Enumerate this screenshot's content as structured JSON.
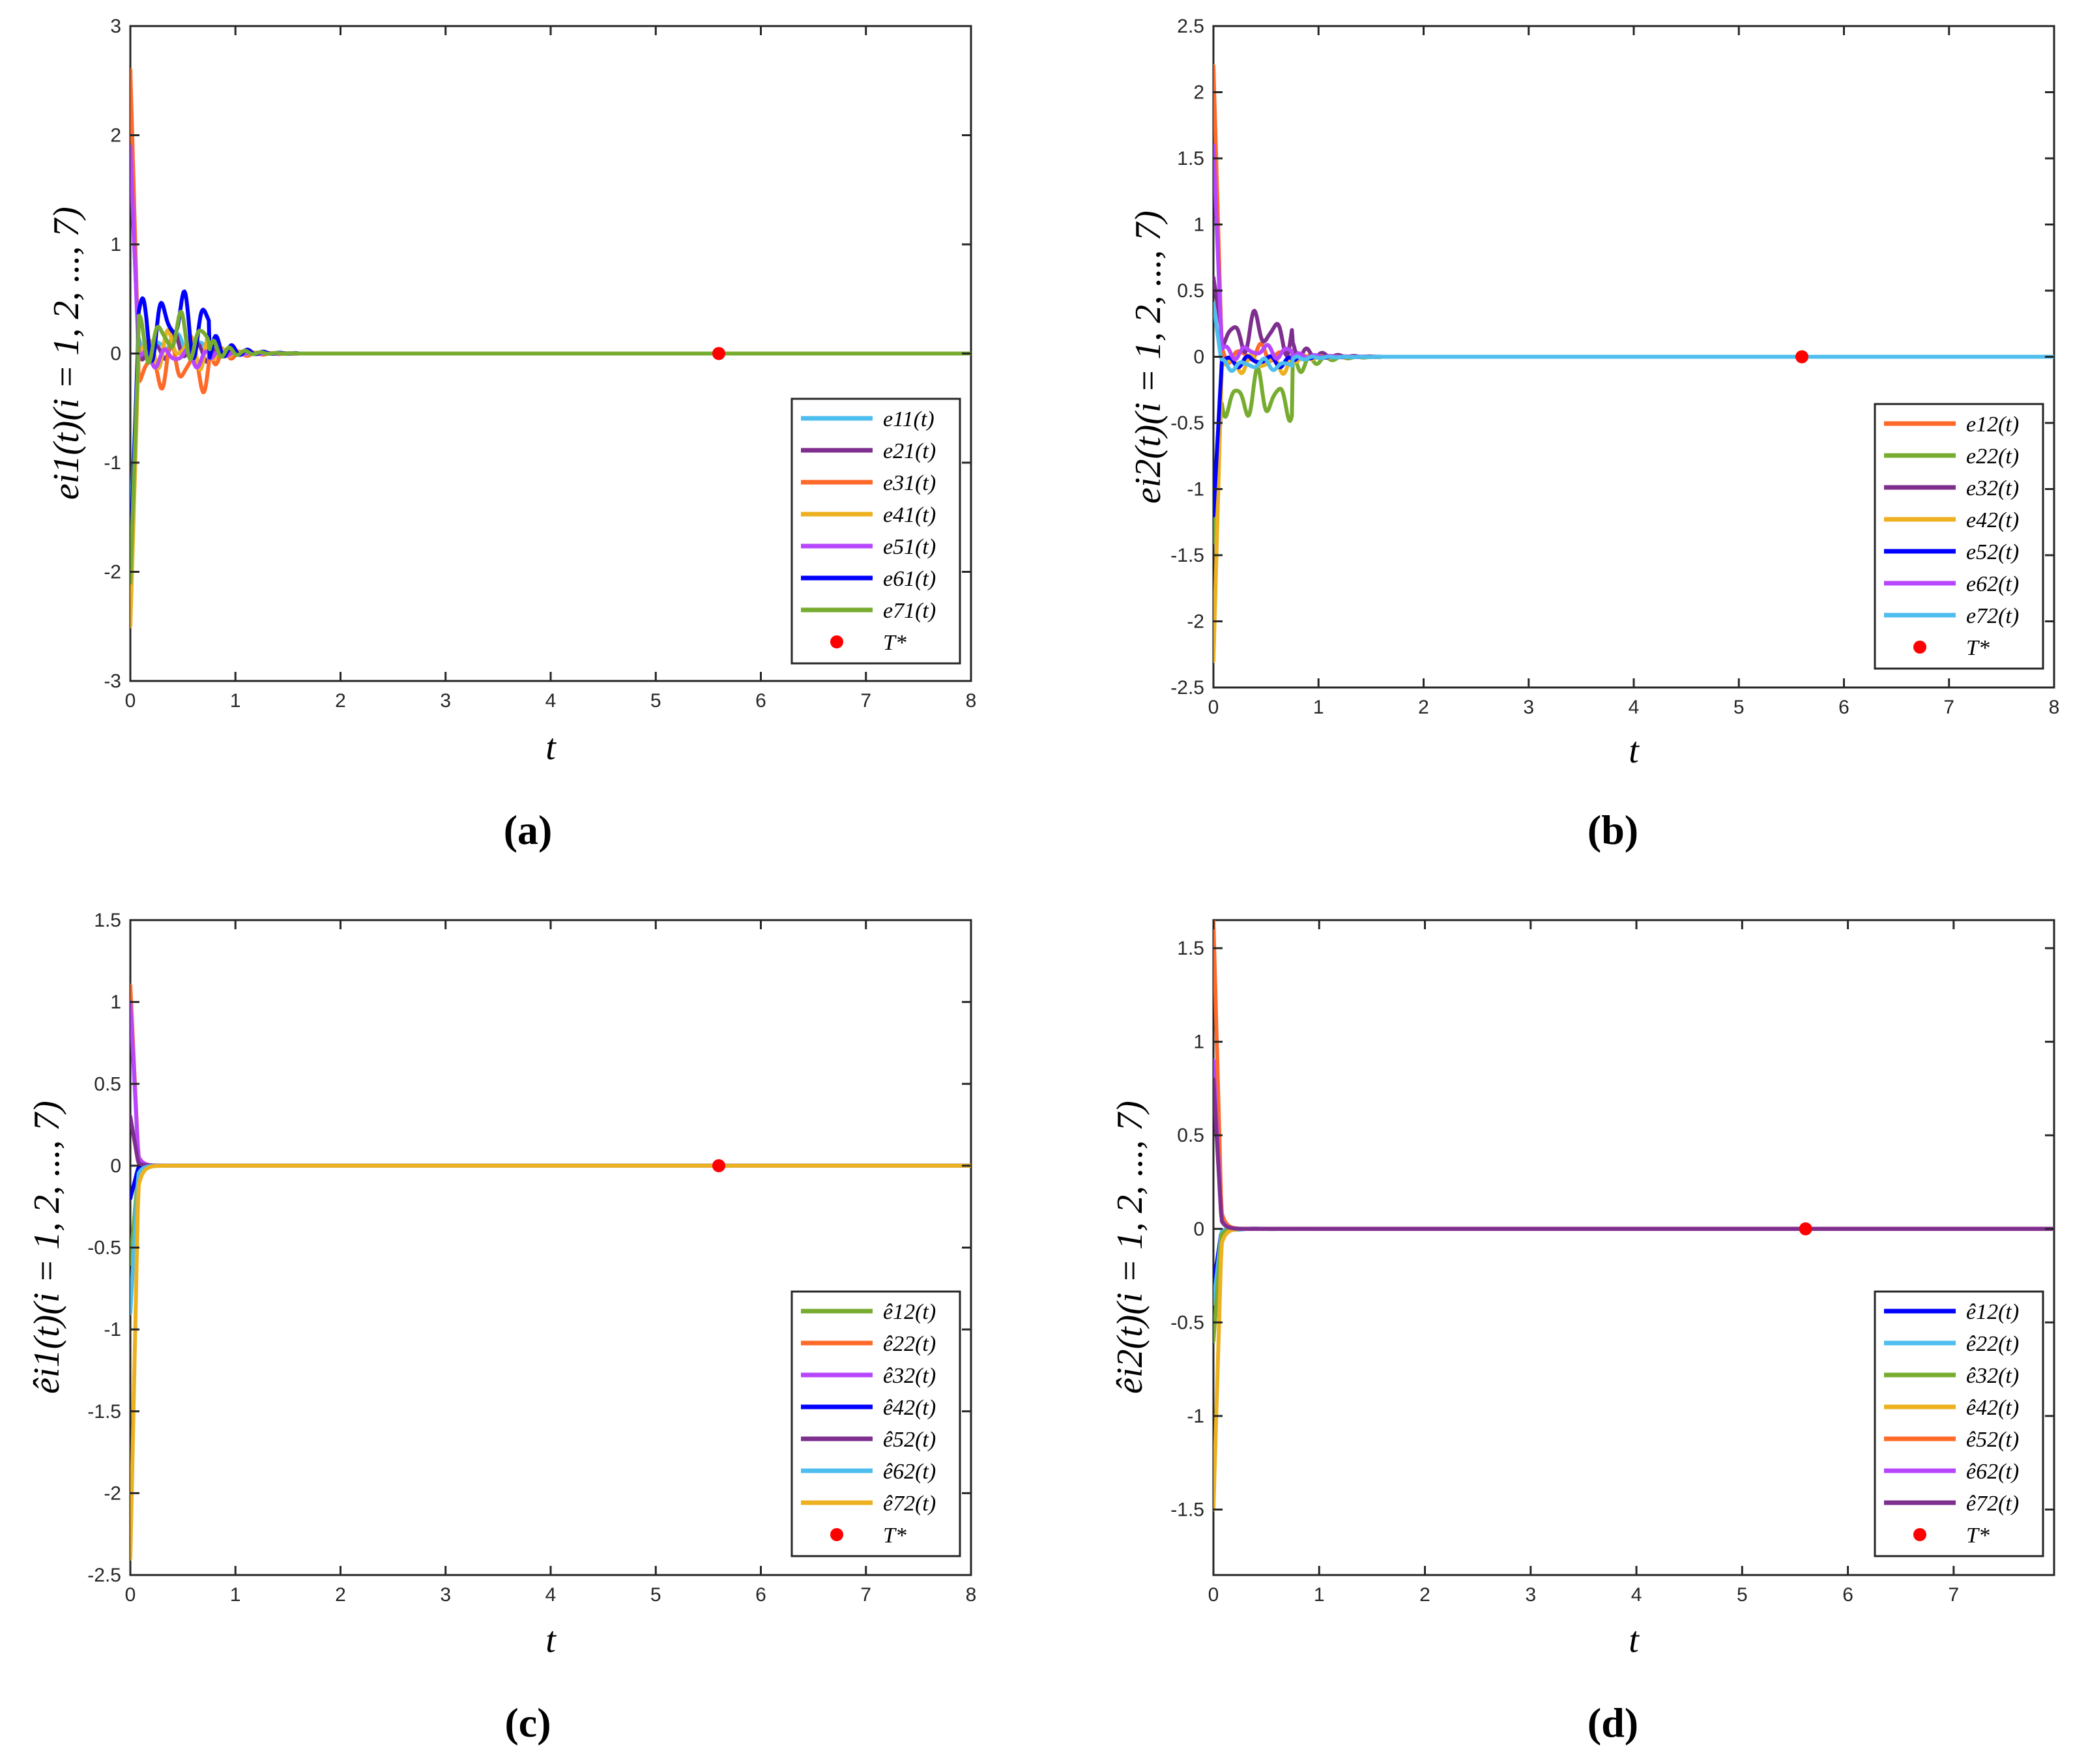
{
  "chart_data": [
    {
      "id": "a",
      "type": "line",
      "caption": "(a)",
      "ylabel": "e_{i1}(t)(i = 1, 2, ..., 7)",
      "ylabel_display": "ei1(t)(i = 1, 2, ..., 7)",
      "xlabel": "t",
      "xlim": [
        0,
        8
      ],
      "ylim": [
        -3,
        3
      ],
      "xticks": [
        "0",
        "1",
        "2",
        "3",
        "4",
        "5",
        "6",
        "7",
        "8"
      ],
      "yticks": [
        "-3",
        "-2",
        "-1",
        "0",
        "1",
        "2",
        "3"
      ],
      "marker": {
        "label": "T*",
        "x": 5.6,
        "y": 0,
        "color": "#ff0000"
      },
      "series": [
        {
          "name": "e11(t)",
          "color": "#4dbeee",
          "init": -1.6,
          "osc": 0.1,
          "bias": 0.08
        },
        {
          "name": "e21(t)",
          "color": "#7e2f8e",
          "init": 1.8,
          "osc": 0.15,
          "bias": 0.05
        },
        {
          "name": "e31(t)",
          "color": "#ff6929",
          "init": 2.6,
          "osc": 0.25,
          "bias": -0.12
        },
        {
          "name": "e41(t)",
          "color": "#edb120",
          "init": -2.5,
          "osc": 0.2,
          "bias": 0.05
        },
        {
          "name": "e51(t)",
          "color": "#b746ff",
          "init": 1.9,
          "osc": 0.1,
          "bias": -0.03
        },
        {
          "name": "e61(t)",
          "color": "#0000ff",
          "init": -1.9,
          "osc": 0.35,
          "bias": 0.28
        },
        {
          "name": "e71(t)",
          "color": "#77ac30",
          "init": -2.1,
          "osc": 0.25,
          "bias": 0.15
        }
      ]
    },
    {
      "id": "b",
      "type": "line",
      "caption": "(b)",
      "ylabel": "e_{i2}(t)(i = 1, 2, ..., 7)",
      "ylabel_display": "ei2(t)(i = 1, 2, ..., 7)",
      "xlabel": "t",
      "xlim": [
        0,
        8
      ],
      "ylim": [
        -2.5,
        2.5
      ],
      "xticks": [
        "0",
        "1",
        "2",
        "3",
        "4",
        "5",
        "6",
        "7",
        "8"
      ],
      "yticks": [
        "-2.5",
        "-2",
        "-1.5",
        "-1",
        "-0.5",
        "0",
        "0.5",
        "1",
        "1.5",
        "2",
        "2.5"
      ],
      "marker": {
        "label": "T*",
        "x": 5.6,
        "y": 0,
        "color": "#ff0000"
      },
      "series": [
        {
          "name": "e12(t)",
          "color": "#ff6929",
          "init": 2.2,
          "osc": 0.08,
          "bias": 0.02
        },
        {
          "name": "e22(t)",
          "color": "#77ac30",
          "init": -1.4,
          "osc": 0.22,
          "bias": -0.3
        },
        {
          "name": "e32(t)",
          "color": "#7e2f8e",
          "init": 0.6,
          "osc": 0.18,
          "bias": 0.18
        },
        {
          "name": "e42(t)",
          "color": "#edb120",
          "init": -2.3,
          "osc": 0.08,
          "bias": -0.05
        },
        {
          "name": "e52(t)",
          "color": "#0000ff",
          "init": -1.2,
          "osc": 0.05,
          "bias": -0.03
        },
        {
          "name": "e62(t)",
          "color": "#b746ff",
          "init": 1.6,
          "osc": 0.06,
          "bias": 0.04
        },
        {
          "name": "e72(t)",
          "color": "#4dbeee",
          "init": 0.4,
          "osc": 0.05,
          "bias": -0.06
        }
      ]
    },
    {
      "id": "c",
      "type": "line",
      "caption": "(c)",
      "ylabel": "ê_{i1}(t)(i = 1, 2, ..., 7)",
      "ylabel_display": "êi1(t)(i = 1, 2, ..., 7)",
      "xlabel": "t",
      "xlim": [
        0,
        8
      ],
      "ylim": [
        -2.5,
        1.5
      ],
      "xticks": [
        "0",
        "1",
        "2",
        "3",
        "4",
        "5",
        "6",
        "7",
        "8"
      ],
      "yticks": [
        "-2.5",
        "-2",
        "-1.5",
        "-1",
        "-0.5",
        "0",
        "0.5",
        "1",
        "1.5"
      ],
      "marker": {
        "label": "T*",
        "x": 5.6,
        "y": 0,
        "color": "#ff0000"
      },
      "series": [
        {
          "name": "ê12(t)",
          "color": "#77ac30",
          "init": -0.6,
          "osc": 0,
          "bias": 0
        },
        {
          "name": "ê22(t)",
          "color": "#ff6929",
          "init": 1.1,
          "osc": 0,
          "bias": 0
        },
        {
          "name": "ê32(t)",
          "color": "#b746ff",
          "init": 1.0,
          "osc": 0,
          "bias": 0
        },
        {
          "name": "ê42(t)",
          "color": "#0000ff",
          "init": -0.2,
          "osc": 0,
          "bias": 0
        },
        {
          "name": "ê52(t)",
          "color": "#7e2f8e",
          "init": 0.3,
          "osc": 0,
          "bias": 0
        },
        {
          "name": "ê62(t)",
          "color": "#4dbeee",
          "init": -0.9,
          "osc": 0,
          "bias": 0
        },
        {
          "name": "ê72(t)",
          "color": "#edb120",
          "init": -2.4,
          "osc": 0,
          "bias": 0
        }
      ]
    },
    {
      "id": "d",
      "type": "line",
      "caption": "(d)",
      "ylabel": "ê_{i2}(t)(i = 1, 2, ..., 7)",
      "ylabel_display": "êi2(t)(i = 1, 2, ..., 7)",
      "xlabel": "t",
      "xlim": [
        0,
        8
      ],
      "ylim": [
        -1.85,
        1.65
      ],
      "xticks": [
        "0",
        "1",
        "2",
        "3",
        "4",
        "5",
        "6",
        "7"
      ],
      "xtick_values": [
        0,
        1,
        2,
        3,
        4,
        5,
        6,
        7
      ],
      "yticks": [
        "-1.5",
        "-1",
        "-0.5",
        "0",
        "0.5",
        "1",
        "1.5"
      ],
      "ytick_values": [
        -1.5,
        -1,
        -0.5,
        0,
        0.5,
        1,
        1.5
      ],
      "marker": {
        "label": "T*",
        "x": 5.6,
        "y": 0,
        "color": "#ff0000"
      },
      "series": [
        {
          "name": "ê12(t)",
          "color": "#0000ff",
          "init": -0.3,
          "osc": 0,
          "bias": 0
        },
        {
          "name": "ê22(t)",
          "color": "#4dbeee",
          "init": -0.4,
          "osc": 0.01,
          "bias": 0
        },
        {
          "name": "ê32(t)",
          "color": "#77ac30",
          "init": -0.6,
          "osc": 0,
          "bias": 0
        },
        {
          "name": "ê42(t)",
          "color": "#edb120",
          "init": -1.5,
          "osc": 0,
          "bias": 0
        },
        {
          "name": "ê52(t)",
          "color": "#ff6929",
          "init": 1.65,
          "osc": 0,
          "bias": 0
        },
        {
          "name": "ê62(t)",
          "color": "#b746ff",
          "init": 0.9,
          "osc": 0,
          "bias": 0
        },
        {
          "name": "ê72(t)",
          "color": "#7e2f8e",
          "init": 0.8,
          "osc": 0,
          "bias": 0
        }
      ]
    }
  ]
}
